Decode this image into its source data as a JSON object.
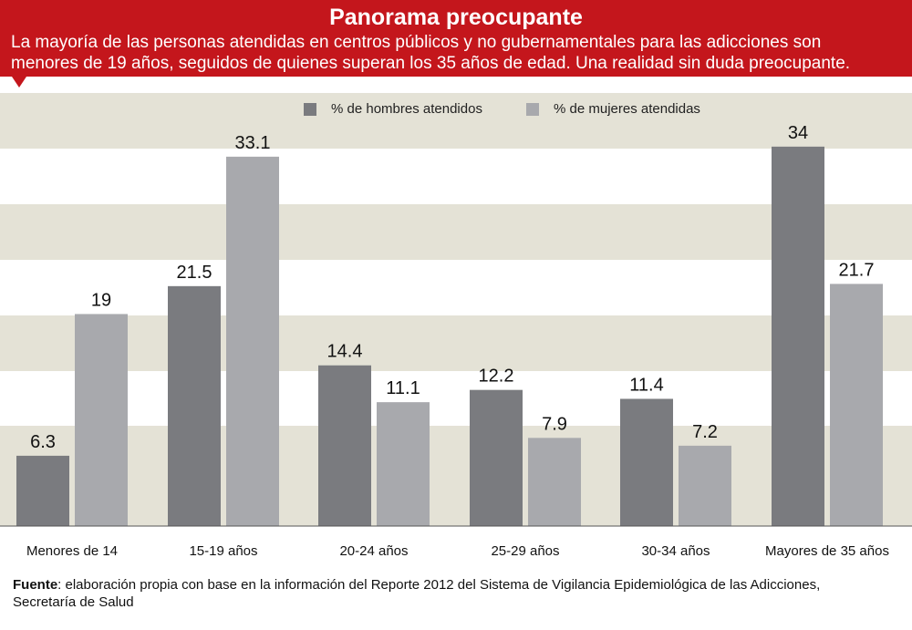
{
  "title": "Panorama preocupante",
  "subtitle_line1": "La mayoría de las personas atendidas en centros públicos y no gubernamentales para las adicciones son",
  "subtitle_line2": "menores de 19 años, seguidos de quienes superan los 35 años de edad. Una realidad sin duda preocupante.",
  "source_label": "Fuente",
  "source_text": ": elaboración propia con base en la información del Reporte 2012 del Sistema de Vigilancia Epidemiológica de las Adicciones,",
  "source_text2": "Secretaría de Salud",
  "colors": {
    "accent": "#c4161c",
    "band": "#e4e2d6",
    "men": "#7a7b7f",
    "women": "#a8a9ad"
  },
  "chart_data": {
    "type": "bar",
    "categories": [
      "Menores de 14",
      "15-19 años",
      "20-24 años",
      "25-29 años",
      "30-34 años",
      "Mayores de 35 años"
    ],
    "series": [
      {
        "name": "% de hombres atendidos",
        "values": [
          6.3,
          21.5,
          14.4,
          12.2,
          11.4,
          34
        ]
      },
      {
        "name": "% de mujeres atendidas",
        "values": [
          19,
          33.1,
          11.1,
          7.9,
          7.2,
          21.7
        ]
      }
    ],
    "value_labels": [
      [
        "6.3",
        "21.5",
        "14.4",
        "12.2",
        "11.4",
        "34"
      ],
      [
        "19",
        "33.1",
        "11.1",
        "7.9",
        "7.2",
        "21.7"
      ]
    ],
    "ylim": [
      0,
      34
    ],
    "grid": true,
    "legend": "top-center"
  }
}
